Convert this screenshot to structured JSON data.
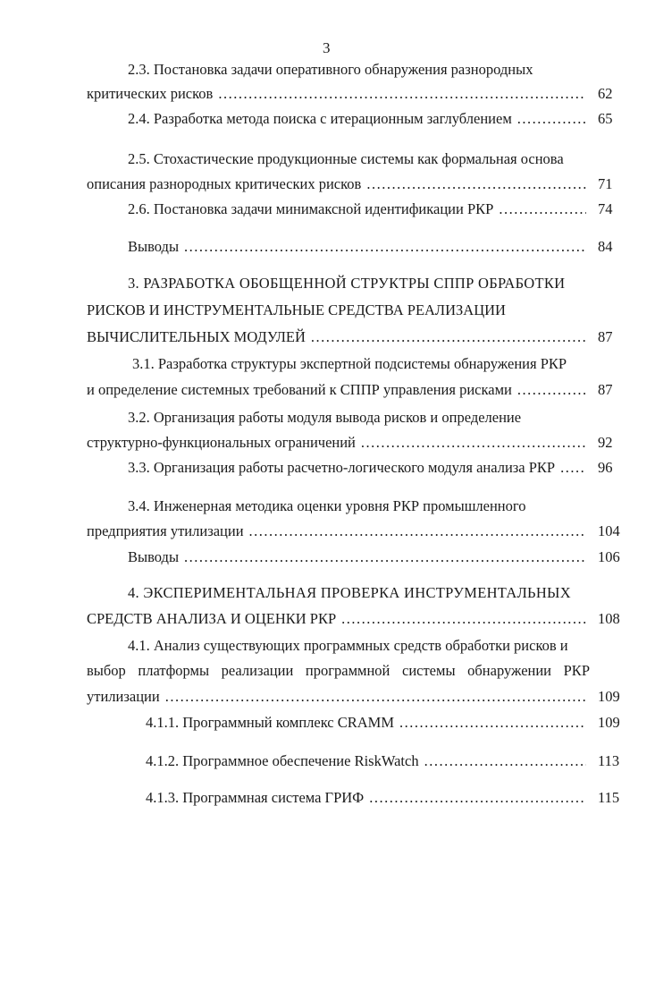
{
  "page_number": "3",
  "entries": [
    {
      "lines": [
        "2.3. Постановка задачи оперативного обнаружения разнородных",
        "критических рисков"
      ],
      "page": "62"
    },
    {
      "lines": [
        "2.4. Разработка метода поиска с итерационным заглублением"
      ],
      "page": "65"
    },
    {
      "lines": [
        "2.5. Стохастические продукционные системы как формальная основа",
        "описания разнородных критических рисков"
      ],
      "page": "71"
    },
    {
      "lines": [
        "2.6. Постановка задачи минимаксной идентификации РКР"
      ],
      "page": "74"
    },
    {
      "lines": [
        "Выводы"
      ],
      "page": "84"
    },
    {
      "lines": [
        "3. РАЗРАБОТКА ОБОБЩЕННОЙ СТРУКТРЫ СППР ОБРАБОТКИ",
        "РИСКОВ И ИНСТРУМЕНТАЛЬНЫЕ СРЕДСТВА РЕАЛИЗАЦИИ",
        "ВЫЧИСЛИТЕЛЬНЫХ МОДУЛЕЙ"
      ],
      "page": "87"
    },
    {
      "lines": [
        "3.1. Разработка структуры экспертной подсистемы обнаружения РКР",
        "и определение системных требований к СППР управления рисками"
      ],
      "page": "87"
    },
    {
      "lines": [
        "3.2. Организация работы модуля вывода рисков и определение",
        "структурно-функциональных ограничений"
      ],
      "page": "92"
    },
    {
      "lines": [
        "3.3. Организация работы расчетно-логического модуля анализа РКР"
      ],
      "page": "96"
    },
    {
      "lines": [
        "3.4. Инженерная методика оценки уровня РКР промышленного",
        "предприятия утилизации"
      ],
      "page": "104"
    },
    {
      "lines": [
        "Выводы"
      ],
      "page": "106"
    },
    {
      "lines": [
        "4. ЭКСПЕРИМЕНТАЛЬНАЯ ПРОВЕРКА ИНСТРУМЕНТАЛЬНЫХ",
        "СРЕДСТВ АНАЛИЗА И ОЦЕНКИ РКР"
      ],
      "page": "108"
    },
    {
      "lines": [
        "4.1. Анализ существующих программных средств обработки рисков и",
        "выбор платформы реализации программной системы обнаружении РКР",
        "утилизации"
      ],
      "page": "109"
    },
    {
      "lines": [
        "4.1.1. Программный комплекс CRAMM"
      ],
      "page": "109"
    },
    {
      "lines": [
        "4.1.2. Программное обеспечение RiskWatch"
      ],
      "page": "113"
    },
    {
      "lines": [
        "4.1.3. Программная система ГРИФ"
      ],
      "page": "115"
    }
  ]
}
